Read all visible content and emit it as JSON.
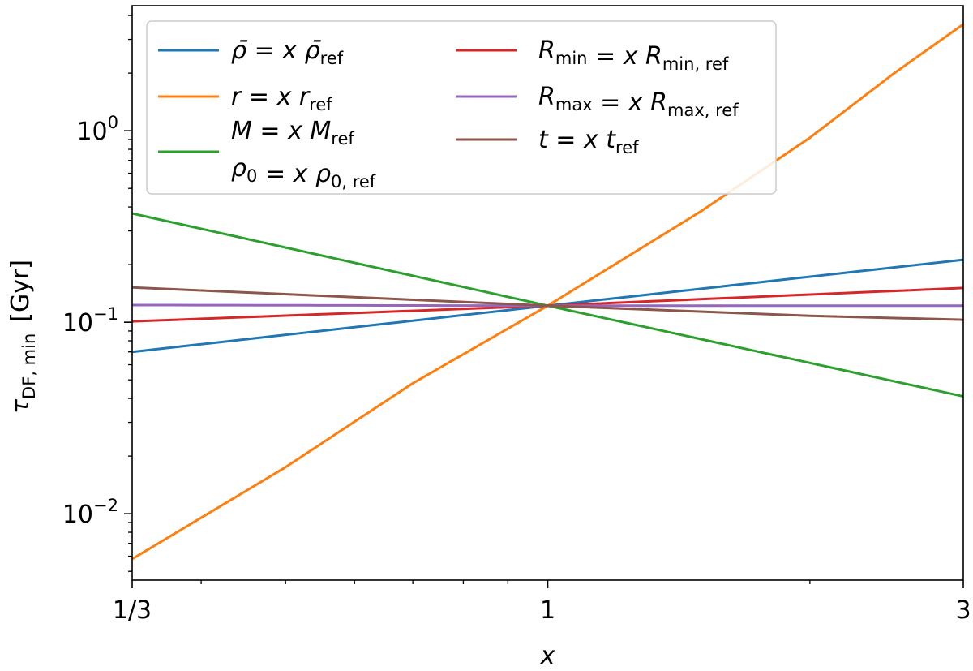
{
  "chart_data": {
    "type": "line",
    "x_scale": "log",
    "y_scale": "log",
    "xlim": [
      0.3333,
      3
    ],
    "ylim": [
      0.0045,
      4.5
    ],
    "x_ticks": [
      {
        "value": 0.3333,
        "label": "1/3"
      },
      {
        "value": 1,
        "label": "1"
      },
      {
        "value": 3,
        "label": "3"
      }
    ],
    "y_ticks": [
      {
        "value": 0.01,
        "base": "10",
        "exp": "−2"
      },
      {
        "value": 0.1,
        "base": "10",
        "exp": "−1"
      },
      {
        "value": 1,
        "base": "10",
        "exp": "0"
      }
    ],
    "xlabel": "x",
    "ylabel": {
      "symbol": "τ",
      "subscript": "DF, min",
      "unit": "[Gyr]"
    },
    "grid": false,
    "legend_position": "top-left",
    "series": [
      {
        "name": {
          "lhs": "ρ̄",
          "lhs_sub": "",
          "rhs": "ρ̄",
          "rhs_sub": "ref"
        },
        "color": "#1f77b4",
        "points": [
          [
            0.3333,
            0.07
          ],
          [
            1,
            0.122
          ],
          [
            3,
            0.212
          ]
        ]
      },
      {
        "name": {
          "lhs": "r",
          "lhs_sub": "",
          "rhs": "r",
          "rhs_sub": "ref"
        },
        "color": "#ff7f0e",
        "points": [
          [
            0.3333,
            0.0058
          ],
          [
            0.5,
            0.0175
          ],
          [
            0.7,
            0.048
          ],
          [
            1,
            0.122
          ],
          [
            1.5,
            0.38
          ],
          [
            2,
            0.92
          ],
          [
            2.5,
            2.0
          ],
          [
            3,
            3.6
          ]
        ]
      },
      {
        "name": {
          "lhs": "M",
          "lhs_sub": "",
          "rhs": "M",
          "rhs_sub": "ref",
          "line2_lhs": "ρ",
          "line2_lhs_sub": "0",
          "line2_rhs": "ρ",
          "line2_rhs_sub": "0, ref"
        },
        "color": "#2ca02c",
        "points": [
          [
            0.3333,
            0.37
          ],
          [
            1,
            0.122
          ],
          [
            3,
            0.041
          ]
        ]
      },
      {
        "name": {
          "lhs": "R",
          "lhs_sub": "min",
          "rhs": "R",
          "rhs_sub": "min, ref"
        },
        "color": "#d62728",
        "points": [
          [
            0.3333,
            0.101
          ],
          [
            1,
            0.122
          ],
          [
            3,
            0.151
          ]
        ]
      },
      {
        "name": {
          "lhs": "R",
          "lhs_sub": "max",
          "rhs": "R",
          "rhs_sub": "max, ref"
        },
        "color": "#9467bd",
        "points": [
          [
            0.3333,
            0.123
          ],
          [
            1,
            0.122
          ],
          [
            3,
            0.122
          ]
        ]
      },
      {
        "name": {
          "lhs": "t",
          "lhs_sub": "",
          "rhs": "t",
          "rhs_sub": "ref"
        },
        "color": "#8c564b",
        "points": [
          [
            0.3333,
            0.152
          ],
          [
            1,
            0.122
          ],
          [
            2,
            0.108
          ],
          [
            3,
            0.103
          ]
        ]
      }
    ]
  }
}
